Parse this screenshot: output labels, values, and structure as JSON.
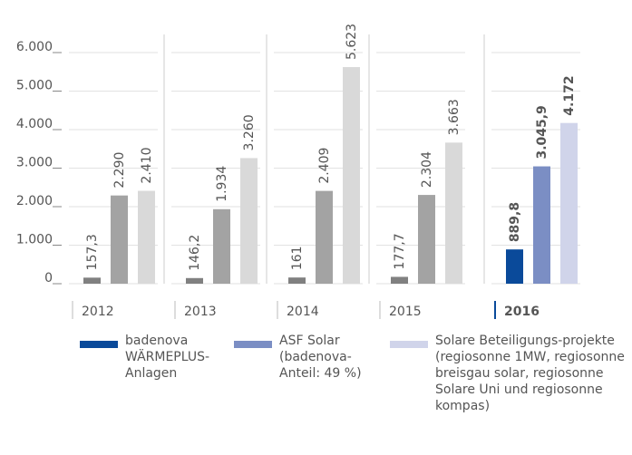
{
  "chart_data": {
    "type": "bar",
    "categories": [
      "2012",
      "2013",
      "2014",
      "2015",
      "2016"
    ],
    "highlight": 4,
    "series": [
      {
        "name": "badenova WÄRMEPLUS-Anlagen",
        "color": "#0a4a9a",
        "colors": [
          "#808080",
          "#808080",
          "#808080",
          "#808080",
          "#0a4a9a"
        ],
        "values": [
          157.3,
          146.2,
          161,
          177.7,
          889.8
        ],
        "value_labels": [
          "157,3",
          "146,2",
          "161",
          "177,7",
          "889,8"
        ]
      },
      {
        "name": "ASF Solar (badenova-Anteil: 49 %)",
        "color": "#7b8ec4",
        "colors": [
          "#a3a3a3",
          "#a3a3a3",
          "#a3a3a3",
          "#a3a3a3",
          "#7b8ec4"
        ],
        "values": [
          2290,
          1934,
          2409,
          2304,
          3045.9
        ],
        "value_labels": [
          "2.290",
          "1.934",
          "2.409",
          "2.304",
          "3.045,9"
        ]
      },
      {
        "name": "Solare Beteiligungs-projekte (regiosonne 1MW, regiosonne breisgau solar, regiosonne Solare Uni und regiosonne kompas)",
        "color": "#d0d4ea",
        "colors": [
          "#d9d9d9",
          "#d9d9d9",
          "#d9d9d9",
          "#d9d9d9",
          "#d0d4ea"
        ],
        "values": [
          2410,
          3260,
          5623,
          3663,
          4172
        ],
        "value_labels": [
          "2.410",
          "3.260",
          "5.623",
          "3.663",
          "4.172"
        ]
      }
    ],
    "ylim": [
      0,
      6000
    ],
    "yticks": [
      {
        "value": 0,
        "label": "0"
      },
      {
        "value": 1000,
        "label": "1.000"
      },
      {
        "value": 2000,
        "label": "2.000"
      },
      {
        "value": 3000,
        "label": "3.000"
      },
      {
        "value": 4000,
        "label": "4.000"
      },
      {
        "value": 5000,
        "label": "5.000"
      },
      {
        "value": 6000,
        "label": "6.000"
      }
    ],
    "grid": true
  }
}
